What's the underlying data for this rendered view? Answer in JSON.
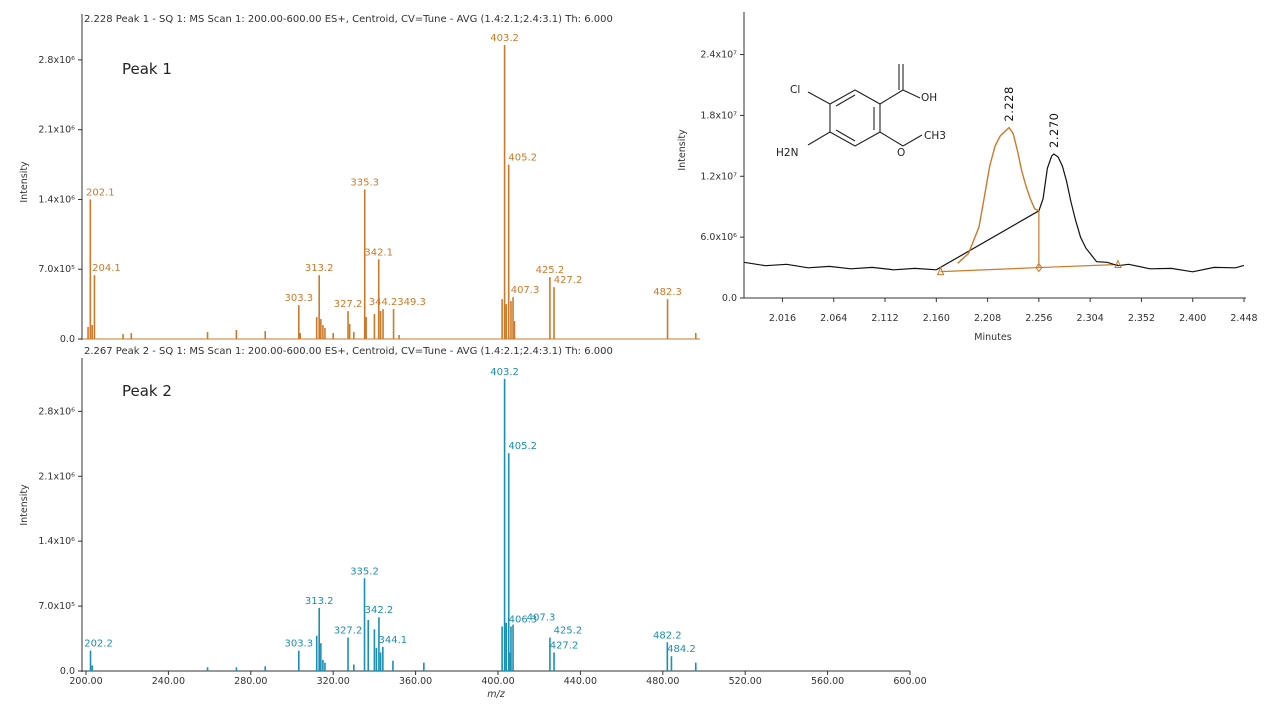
{
  "colors": {
    "peak1": "#cc7a29",
    "peak2": "#1a8fb2",
    "trace": "#111111",
    "axis": "#333333"
  },
  "chart_data": [
    {
      "type": "bar",
      "header": "2.228 Peak 1 - SQ 1: MS Scan 1: 200.00-600.00 ES+, Centroid, CV=Tune - AVG (1.4:2.1;2.4:3.1) Th: 6.000",
      "panel_label": "Peak 1",
      "ylabel": "Intensity",
      "xlabel": "",
      "xlim": [
        200,
        600
      ],
      "ylim": [
        0,
        3100000
      ],
      "yticks": [
        "0.0",
        "7.0x10⁵",
        "1.4x10⁶",
        "2.1x10⁶",
        "2.8x10⁶"
      ],
      "ytick_values": [
        0,
        700000,
        1400000,
        2100000,
        2800000
      ],
      "labeled_peaks": [
        {
          "mz": 202.1,
          "label": "202.1",
          "intensity": 1400000
        },
        {
          "mz": 204.1,
          "label": "204.1",
          "intensity": 640000
        },
        {
          "mz": 303.3,
          "label": "303.3",
          "intensity": 340000
        },
        {
          "mz": 313.2,
          "label": "313.2",
          "intensity": 640000
        },
        {
          "mz": 327.2,
          "label": "327.2",
          "intensity": 280000
        },
        {
          "mz": 335.3,
          "label": "335.3",
          "intensity": 1500000
        },
        {
          "mz": 342.1,
          "label": "342.1",
          "intensity": 800000
        },
        {
          "mz": 344.2,
          "label": "344.2",
          "intensity": 300000
        },
        {
          "mz": 349.3,
          "label": "349.3",
          "intensity": 300000
        },
        {
          "mz": 403.2,
          "label": "403.2",
          "intensity": 2950000
        },
        {
          "mz": 405.2,
          "label": "405.2",
          "intensity": 1750000
        },
        {
          "mz": 407.3,
          "label": "407.3",
          "intensity": 420000
        },
        {
          "mz": 425.2,
          "label": "425.2",
          "intensity": 620000
        },
        {
          "mz": 427.2,
          "label": "427.2",
          "intensity": 520000
        },
        {
          "mz": 482.3,
          "label": "482.3",
          "intensity": 400000
        }
      ],
      "minor_peaks": [
        {
          "mz": 201.0,
          "intensity": 120000
        },
        {
          "mz": 203.0,
          "intensity": 140000
        },
        {
          "mz": 218.0,
          "intensity": 50000
        },
        {
          "mz": 222.0,
          "intensity": 60000
        },
        {
          "mz": 259.0,
          "intensity": 70000
        },
        {
          "mz": 273.0,
          "intensity": 90000
        },
        {
          "mz": 287.0,
          "intensity": 80000
        },
        {
          "mz": 304.0,
          "intensity": 60000
        },
        {
          "mz": 312.0,
          "intensity": 220000
        },
        {
          "mz": 314.0,
          "intensity": 200000
        },
        {
          "mz": 315.0,
          "intensity": 140000
        },
        {
          "mz": 316.0,
          "intensity": 110000
        },
        {
          "mz": 320.0,
          "intensity": 60000
        },
        {
          "mz": 328.0,
          "intensity": 150000
        },
        {
          "mz": 330.0,
          "intensity": 70000
        },
        {
          "mz": 336.0,
          "intensity": 220000
        },
        {
          "mz": 340.0,
          "intensity": 250000
        },
        {
          "mz": 343.0,
          "intensity": 280000
        },
        {
          "mz": 352.0,
          "intensity": 40000
        },
        {
          "mz": 402.0,
          "intensity": 400000
        },
        {
          "mz": 404.0,
          "intensity": 350000
        },
        {
          "mz": 406.3,
          "intensity": 380000
        },
        {
          "mz": 408.0,
          "intensity": 180000
        },
        {
          "mz": 496.0,
          "intensity": 60000
        }
      ]
    },
    {
      "type": "bar",
      "header": "2.267 Peak 2 - SQ 1: MS Scan 1: 200.00-600.00 ES+, Centroid, CV=Tune - AVG (1.4:2.1;2.4:3.1) Th: 6.000",
      "panel_label": "Peak 2",
      "ylabel": "Intensity",
      "xlabel": "m/z",
      "xlim": [
        200,
        600
      ],
      "ylim": [
        0,
        3300000
      ],
      "xticks": [
        "200.00",
        "240.00",
        "280.00",
        "320.00",
        "360.00",
        "400.00",
        "440.00",
        "480.00",
        "520.00",
        "560.00",
        "600.00"
      ],
      "xtick_values": [
        200,
        240,
        280,
        320,
        360,
        400,
        440,
        480,
        520,
        560,
        600
      ],
      "yticks": [
        "0.0",
        "7.0x10⁵",
        "1.4x10⁶",
        "2.1x10⁶",
        "2.8x10⁶"
      ],
      "ytick_values": [
        0,
        700000,
        1400000,
        2100000,
        2800000
      ],
      "labeled_peaks": [
        {
          "mz": 202.2,
          "label": "202.2",
          "intensity": 220000
        },
        {
          "mz": 303.3,
          "label": "303.3",
          "intensity": 220000
        },
        {
          "mz": 313.2,
          "label": "313.2",
          "intensity": 680000
        },
        {
          "mz": 327.2,
          "label": "327.2",
          "intensity": 360000
        },
        {
          "mz": 335.2,
          "label": "335.2",
          "intensity": 1000000
        },
        {
          "mz": 342.2,
          "label": "342.2",
          "intensity": 580000
        },
        {
          "mz": 344.1,
          "label": "344.1",
          "intensity": 260000
        },
        {
          "mz": 403.2,
          "label": "403.2",
          "intensity": 3150000
        },
        {
          "mz": 405.2,
          "label": "405.2",
          "intensity": 2350000
        },
        {
          "mz": 406.3,
          "label": "406.3",
          "intensity": 480000
        },
        {
          "mz": 407.3,
          "label": "407.3",
          "intensity": 500000
        },
        {
          "mz": 425.2,
          "label": "425.2",
          "intensity": 360000
        },
        {
          "mz": 427.2,
          "label": "427.2",
          "intensity": 200000
        },
        {
          "mz": 482.2,
          "label": "482.2",
          "intensity": 310000
        },
        {
          "mz": 484.2,
          "label": "484.2",
          "intensity": 160000
        }
      ],
      "minor_peaks": [
        {
          "mz": 203.0,
          "intensity": 60000
        },
        {
          "mz": 259.0,
          "intensity": 40000
        },
        {
          "mz": 273.0,
          "intensity": 40000
        },
        {
          "mz": 287.0,
          "intensity": 50000
        },
        {
          "mz": 312.0,
          "intensity": 380000
        },
        {
          "mz": 314.0,
          "intensity": 300000
        },
        {
          "mz": 315.0,
          "intensity": 120000
        },
        {
          "mz": 316.0,
          "intensity": 90000
        },
        {
          "mz": 330.0,
          "intensity": 70000
        },
        {
          "mz": 337.0,
          "intensity": 550000
        },
        {
          "mz": 340.0,
          "intensity": 450000
        },
        {
          "mz": 341.0,
          "intensity": 250000
        },
        {
          "mz": 343.0,
          "intensity": 200000
        },
        {
          "mz": 349.0,
          "intensity": 110000
        },
        {
          "mz": 364.0,
          "intensity": 90000
        },
        {
          "mz": 402.0,
          "intensity": 480000
        },
        {
          "mz": 404.0,
          "intensity": 520000
        },
        {
          "mz": 406.0,
          "intensity": 200000
        },
        {
          "mz": 496.0,
          "intensity": 90000
        }
      ]
    },
    {
      "type": "line",
      "ylabel": "Intensity",
      "xlabel": "Minutes",
      "xlim": [
        1.98,
        2.448
      ],
      "ylim": [
        0,
        28000000
      ],
      "xticks": [
        "2.016",
        "2.064",
        "2.112",
        "2.160",
        "2.208",
        "2.256",
        "2.304",
        "2.352",
        "2.400",
        "2.448"
      ],
      "xtick_values": [
        2.016,
        2.064,
        2.112,
        2.16,
        2.208,
        2.256,
        2.304,
        2.352,
        2.4,
        2.448
      ],
      "yticks": [
        "0.0",
        "6.0x10⁶",
        "1.2x10⁷",
        "1.8x10⁷",
        "2.4x10⁷"
      ],
      "ytick_values": [
        0,
        6000000,
        12000000,
        18000000,
        24000000
      ],
      "peak_labels": [
        {
          "label": "2.228",
          "x": 2.228,
          "y": 16800000
        },
        {
          "label": "2.270",
          "x": 2.27,
          "y": 14200000
        }
      ],
      "trace": {
        "x": [
          1.98,
          2.0,
          2.02,
          2.04,
          2.06,
          2.08,
          2.1,
          2.12,
          2.14,
          2.16,
          2.18,
          2.19,
          2.2,
          2.205,
          2.21,
          2.215,
          2.22,
          2.225,
          2.228,
          2.232,
          2.236,
          2.24,
          2.244,
          2.248,
          2.252,
          2.256,
          2.26,
          2.264,
          2.268,
          2.27,
          2.274,
          2.278,
          2.282,
          2.286,
          2.29,
          2.295,
          2.3,
          2.31,
          2.32,
          2.33,
          2.34,
          2.36,
          2.38,
          2.4,
          2.42,
          2.44,
          2.448
        ],
        "y": [
          3400000,
          3300000,
          3200000,
          3100000,
          3000000,
          3000000,
          2900000,
          2900000,
          2800000,
          2900000,
          3300000,
          4500000,
          7000000,
          10000000,
          13000000,
          15000000,
          16000000,
          16500000,
          16800000,
          16200000,
          14500000,
          12500000,
          11000000,
          9800000,
          8800000,
          8600000,
          9800000,
          12800000,
          14000000,
          14200000,
          13900000,
          13000000,
          11500000,
          9500000,
          7800000,
          6000000,
          4800000,
          3700000,
          3400000,
          3300000,
          3200000,
          3000000,
          2800000,
          2700000,
          2900000,
          3100000,
          3100000
        ]
      },
      "integration": {
        "peak1": {
          "start": 2.164,
          "end": 2.256,
          "baseline_start": 2600000.0,
          "baseline_end": 3000000.0
        },
        "peak2": {
          "start": 2.256,
          "end": 2.33,
          "baseline_start": 3000000.0,
          "baseline_end": 3300000.0
        }
      }
    }
  ],
  "structure": {
    "atoms": [
      "Cl",
      "OH",
      "O",
      "CH3",
      "H2N"
    ]
  }
}
